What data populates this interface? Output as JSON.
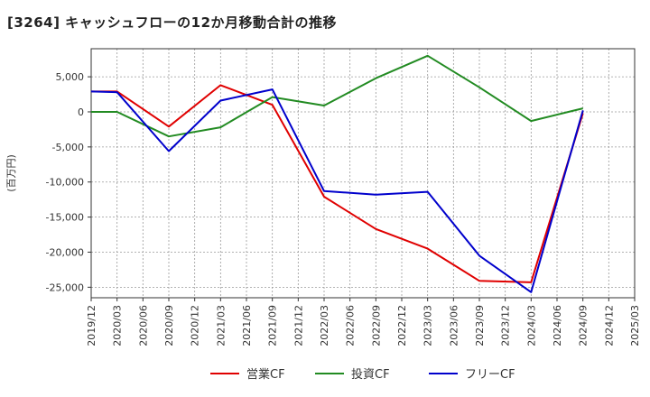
{
  "chart_data": {
    "type": "line",
    "title": "[3264]  キャッシュフローの12か月移動合計の推移",
    "ylabel": "(百万円)",
    "xlabel": "",
    "ylim": [
      -26500,
      9000
    ],
    "yticks": [
      5000,
      0,
      -5000,
      -10000,
      -15000,
      -20000,
      -25000
    ],
    "ytick_labels": [
      "5,000",
      "0",
      "-5,000",
      "-10,000",
      "-15,000",
      "-20,000",
      "-25,000"
    ],
    "categories": [
      "2019/12",
      "2020/03",
      "2020/06",
      "2020/09",
      "2020/12",
      "2021/03",
      "2021/06",
      "2021/09",
      "2021/12",
      "2022/03",
      "2022/06",
      "2022/09",
      "2022/12",
      "2023/03",
      "2023/06",
      "2023/09",
      "2023/12",
      "2024/03",
      "2024/06",
      "2024/09",
      "2024/12",
      "2025/03"
    ],
    "grid": true,
    "legend_position": "bottom",
    "series": [
      {
        "name": "営業CF",
        "color": "#e00000",
        "values": [
          2900,
          2900,
          null,
          -2100,
          null,
          3800,
          null,
          1000,
          null,
          -12100,
          null,
          -16700,
          null,
          -19500,
          null,
          -24100,
          null,
          -24300,
          null,
          -200,
          null,
          null
        ]
      },
      {
        "name": "投資CF",
        "color": "#228b22",
        "values": [
          0,
          0,
          null,
          -3500,
          null,
          -2200,
          null,
          2100,
          null,
          900,
          null,
          4800,
          null,
          8000,
          null,
          3500,
          null,
          -1300,
          null,
          500,
          null,
          null
        ]
      },
      {
        "name": "フリーCF",
        "color": "#0000cc",
        "values": [
          2900,
          2800,
          null,
          -5600,
          null,
          1600,
          null,
          3200,
          null,
          -11300,
          null,
          -11800,
          null,
          -11400,
          null,
          -20500,
          null,
          -25700,
          null,
          200,
          null,
          null
        ]
      }
    ]
  }
}
